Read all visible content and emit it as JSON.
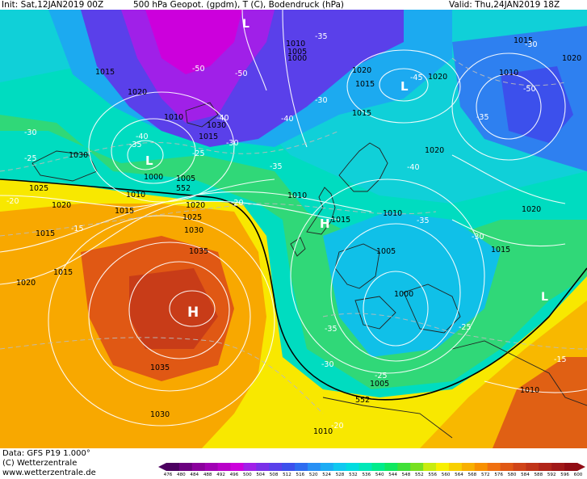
{
  "header": {
    "init": "Init: Sat,12JAN2019 00Z",
    "title": "500 hPa Geopot. (gpdm), T (C), Bodendruck (hPa)",
    "valid": "Valid: Thu,24JAN2019 18Z"
  },
  "footer": {
    "data_line": "Data: GFS P19 1.000°",
    "copyright_line": "(C) Wetterzentrale",
    "url_line": "www.wetterzentrale.de"
  },
  "legend": {
    "ticks": [
      "476",
      "480",
      "484",
      "488",
      "492",
      "496",
      "500",
      "504",
      "508",
      "512",
      "516",
      "520",
      "524",
      "528",
      "532",
      "536",
      "540",
      "544",
      "548",
      "552",
      "556",
      "560",
      "564",
      "568",
      "572",
      "576",
      "580",
      "584",
      "588",
      "592",
      "596",
      "600"
    ],
    "colors": [
      "#4b0060",
      "#6a007e",
      "#8a009c",
      "#a000b4",
      "#b800c8",
      "#cc00dc",
      "#a020e8",
      "#7a30e8",
      "#5a40ea",
      "#3c50ec",
      "#2e6cf0",
      "#2890f4",
      "#1cacf4",
      "#10c8f0",
      "#00dce0",
      "#00e8b8",
      "#00ec8c",
      "#10e860",
      "#40e038",
      "#78e020",
      "#c8ec10",
      "#f8f000",
      "#f8d000",
      "#f8b000",
      "#f89000",
      "#f07010",
      "#e05814",
      "#d04418",
      "#c03418",
      "#b02418",
      "#a01818",
      "#900c14"
    ]
  },
  "map": {
    "highs": [
      {
        "id": "h-central-atlantic",
        "label": "H"
      },
      {
        "id": "h-north-sea",
        "label": "H"
      },
      {
        "id": "l-iceland",
        "label": "L"
      },
      {
        "id": "l-scandinavia",
        "label": "L"
      },
      {
        "id": "l-north-top",
        "label": "L"
      },
      {
        "id": "l-east-med",
        "label": "L"
      }
    ],
    "pressure_labels": [
      "1015",
      "1020",
      "1010",
      "1010",
      "1000",
      "1010",
      "1005",
      "1020",
      "1025",
      "1030",
      "1035",
      "1035",
      "1030",
      "1025",
      "1030",
      "1020",
      "1015",
      "1015",
      "1020",
      "1010",
      "1015",
      "1020",
      "1015",
      "1010",
      "1020",
      "1015",
      "1010",
      "1005",
      "1000",
      "1005",
      "1010",
      "1010",
      "1020",
      "1015",
      "1010",
      "1030",
      "1025",
      "1020",
      "1015",
      "1010",
      "1010",
      "1015",
      "1020"
    ],
    "temp_labels": [
      "-50",
      "-50",
      "-45",
      "-40",
      "-35",
      "-35",
      "-30",
      "-30",
      "-30",
      "-25",
      "-35",
      "-40",
      "-40",
      "-30",
      "-30",
      "-25",
      "-20",
      "-15",
      "-15",
      "-25",
      "-20",
      "-25",
      "-25",
      "-30",
      "-35",
      "-25",
      "-25",
      "-15",
      "-20",
      "-30",
      "-35",
      "-40",
      "-45"
    ],
    "geopot_labels": [
      "552",
      "552"
    ],
    "extremes": {
      "central_low": "1000",
      "atlantic_high": "1035"
    }
  }
}
